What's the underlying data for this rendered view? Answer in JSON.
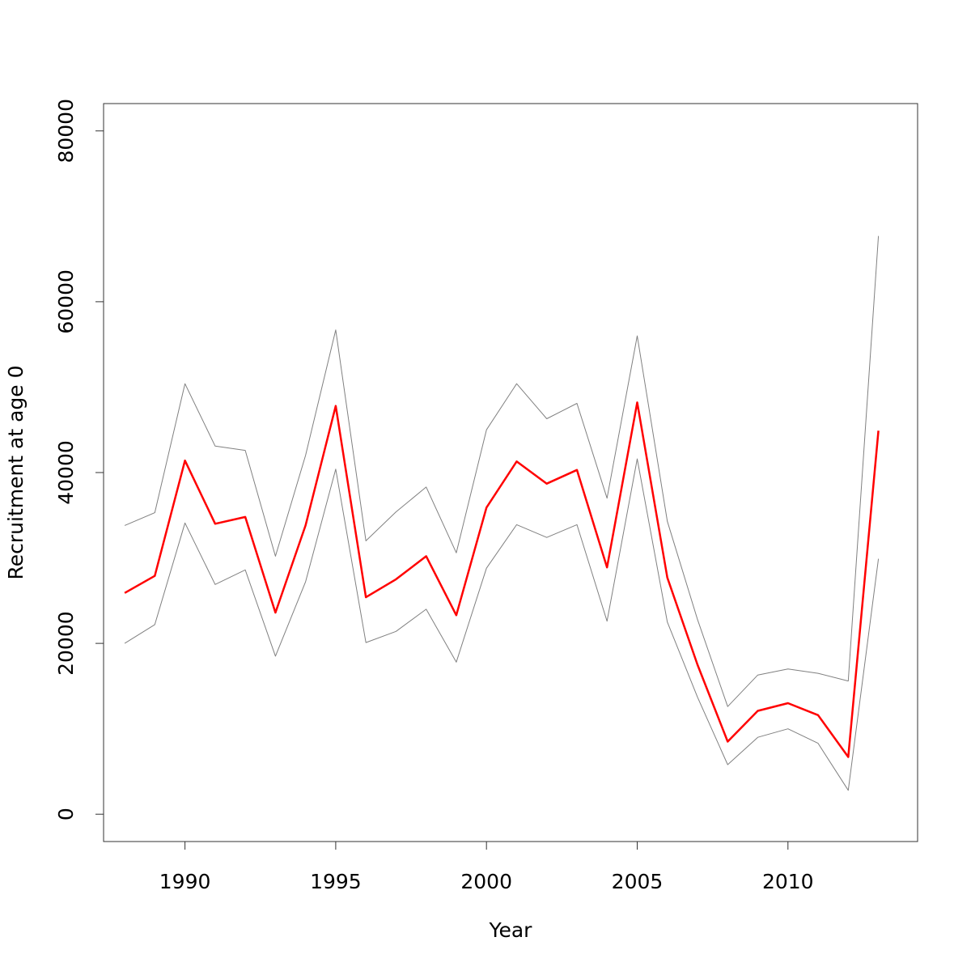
{
  "chart_data": {
    "type": "line",
    "title": "",
    "xlabel": "Year",
    "ylabel": "Recruitment at age 0",
    "xlim": [
      1987.3,
      2014.3
    ],
    "ylim": [
      -3200,
      83200
    ],
    "x_ticks": [
      1990,
      1995,
      2000,
      2005,
      2010
    ],
    "x_tick_labels": [
      "1990",
      "1995",
      "2000",
      "2005",
      "2010"
    ],
    "y_ticks": [
      0,
      20000,
      40000,
      60000,
      80000
    ],
    "y_tick_labels": [
      "0",
      "20000",
      "40000",
      "60000",
      "80000"
    ],
    "grid": false,
    "legend": "none",
    "x": [
      1988,
      1989,
      1990,
      1991,
      1992,
      1993,
      1994,
      1995,
      1996,
      1997,
      1998,
      1999,
      2000,
      2001,
      2002,
      2003,
      2004,
      2005,
      2006,
      2007,
      2008,
      2009,
      2010,
      2011,
      2012,
      2013
    ],
    "series": [
      {
        "color": "#ff0000",
        "values": [
          25900,
          27900,
          41400,
          34000,
          34800,
          23600,
          33800,
          47800,
          25400,
          27500,
          30200,
          23300,
          35900,
          41300,
          38700,
          40300,
          28900,
          48200,
          27700,
          17500,
          8500,
          12100,
          13000,
          11600,
          6700,
          44900
        ]
      },
      {
        "color": "#808080",
        "values": [
          33800,
          35300,
          50400,
          43100,
          42600,
          30200,
          42000,
          56700,
          32000,
          35400,
          38300,
          30600,
          45000,
          50400,
          46300,
          48100,
          37000,
          56000,
          34300,
          22800,
          12600,
          16300,
          17000,
          16500,
          15600,
          67700
        ]
      },
      {
        "color": "#808080",
        "values": [
          20000,
          22200,
          34100,
          26900,
          28600,
          18500,
          27200,
          40400,
          20100,
          21400,
          24000,
          17800,
          28800,
          33900,
          32400,
          33900,
          22600,
          41600,
          22500,
          13700,
          5800,
          9000,
          10000,
          8300,
          2800,
          29900
        ]
      }
    ]
  }
}
